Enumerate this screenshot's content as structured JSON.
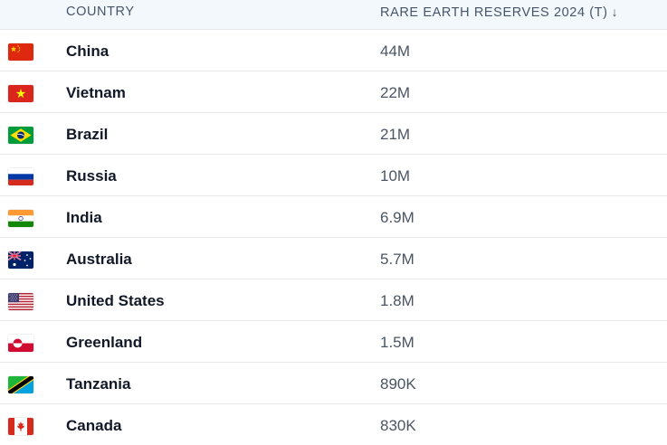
{
  "table": {
    "headers": {
      "country": "COUNTRY",
      "reserves": "RARE EARTH RESERVES 2024 (T)",
      "sort_indicator": "↓"
    },
    "rows": [
      {
        "country": "China",
        "value": "44M",
        "flag_icon": "china-flag-icon"
      },
      {
        "country": "Vietnam",
        "value": "22M",
        "flag_icon": "vietnam-flag-icon"
      },
      {
        "country": "Brazil",
        "value": "21M",
        "flag_icon": "brazil-flag-icon"
      },
      {
        "country": "Russia",
        "value": "10M",
        "flag_icon": "russia-flag-icon"
      },
      {
        "country": "India",
        "value": "6.9M",
        "flag_icon": "india-flag-icon"
      },
      {
        "country": "Australia",
        "value": "5.7M",
        "flag_icon": "australia-flag-icon"
      },
      {
        "country": "United States",
        "value": "1.8M",
        "flag_icon": "united-states-flag-icon"
      },
      {
        "country": "Greenland",
        "value": "1.5M",
        "flag_icon": "greenland-flag-icon"
      },
      {
        "country": "Tanzania",
        "value": "890K",
        "flag_icon": "tanzania-flag-icon"
      },
      {
        "country": "Canada",
        "value": "830K",
        "flag_icon": "canada-flag-icon"
      }
    ]
  },
  "colors": {
    "header_bg": "#f3f8fd",
    "header_text": "#475569",
    "country_text": "#111827",
    "value_text": "#4b5563",
    "row_divider": "#e6e9ee"
  }
}
